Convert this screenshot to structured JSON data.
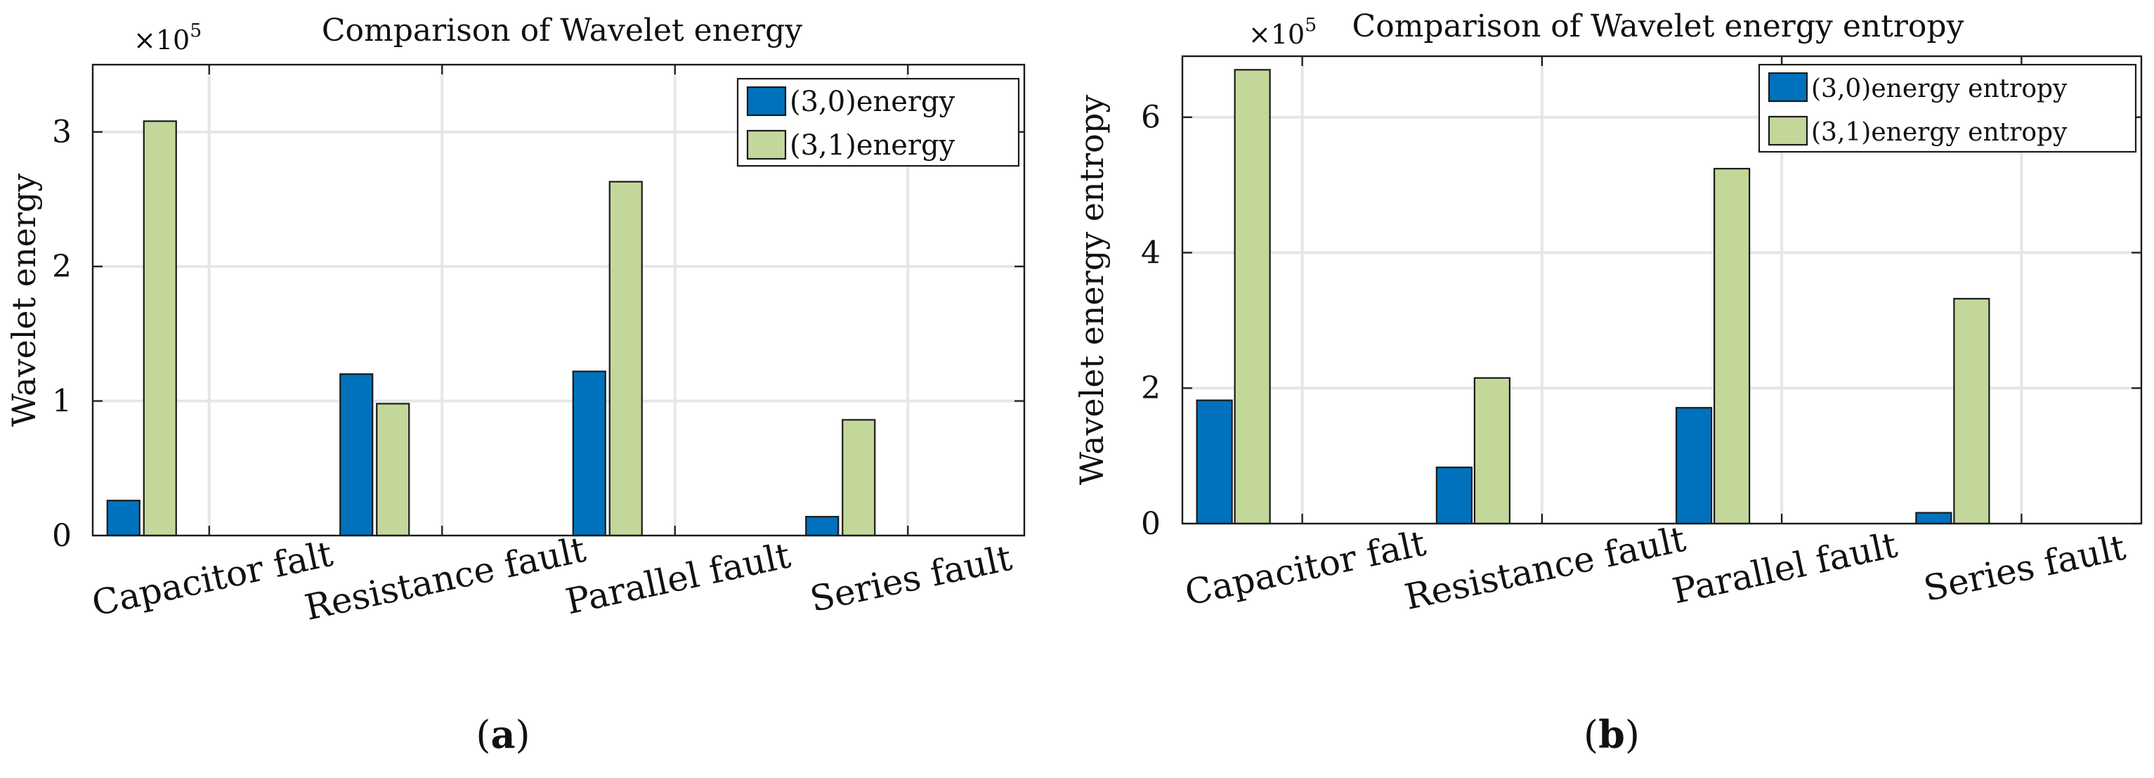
{
  "chart_data": [
    {
      "type": "bar",
      "panel_label": "a",
      "title": "Comparison of Wavelet energy",
      "xlabel": "",
      "ylabel": "Wavelet energy",
      "multiplier_label": "×10",
      "multiplier_exponent": "5",
      "categories": [
        "Capacitor falt",
        "Resistance fault",
        "Parallel fault",
        "Series fault"
      ],
      "series": [
        {
          "name": "(3,0)energy",
          "color": "#0072BD",
          "values": [
            0.26,
            1.2,
            1.22,
            0.14
          ]
        },
        {
          "name": "(3,1)energy",
          "color": "#C4D79B",
          "values": [
            3.08,
            0.98,
            2.63,
            0.86
          ]
        }
      ],
      "ylim": [
        0,
        3.5
      ],
      "yticks": [
        0,
        1,
        2,
        3
      ],
      "ytick_labels": [
        "0",
        "1",
        "2",
        "3"
      ],
      "grid": true,
      "legend_position": "top-right"
    },
    {
      "type": "bar",
      "panel_label": "b",
      "title": "Comparison of Wavelet energy entropy",
      "xlabel": "",
      "ylabel": "Wavelet energy entropy",
      "multiplier_label": "×10",
      "multiplier_exponent": "5",
      "categories": [
        "Capacitor falt",
        "Resistance fault",
        "Parallel fault",
        "Series fault"
      ],
      "series": [
        {
          "name": "(3,0)energy entropy",
          "color": "#0072BD",
          "values": [
            1.82,
            0.83,
            1.71,
            0.16
          ]
        },
        {
          "name": "(3,1)energy entropy",
          "color": "#C4D79B",
          "values": [
            6.7,
            2.15,
            5.24,
            3.32
          ]
        }
      ],
      "ylim": [
        0,
        6.9
      ],
      "yticks": [
        0,
        2,
        4,
        6
      ],
      "ytick_labels": [
        "0",
        "2",
        "4",
        "6"
      ],
      "grid": true,
      "legend_position": "top-right"
    }
  ]
}
